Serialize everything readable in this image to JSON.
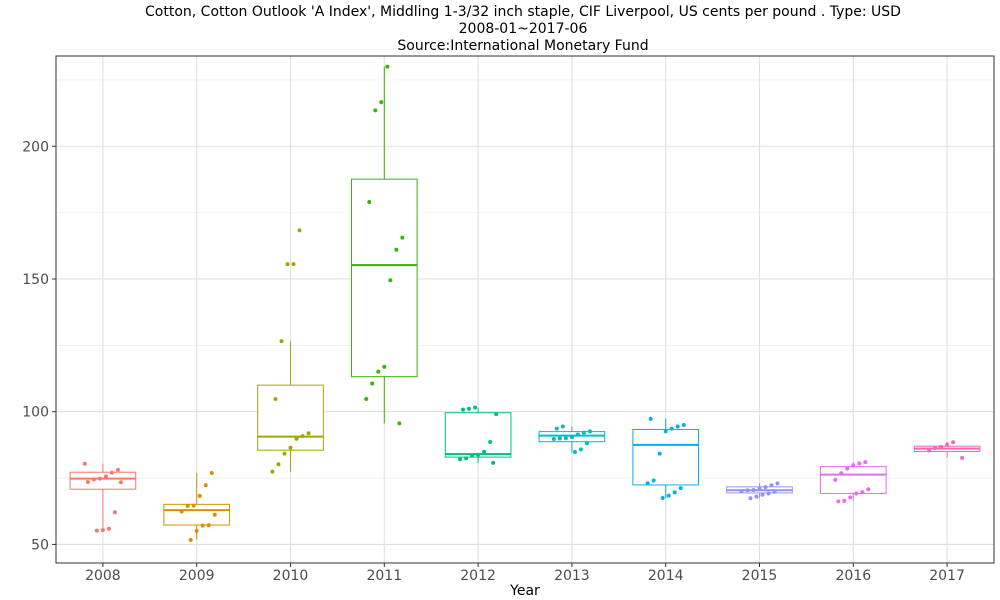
{
  "chart_data": {
    "type": "box",
    "title": "Cotton, Cotton Outlook 'A Index', Middling 1-3/32 inch staple, CIF Liverpool, US cents per pound . Type: USD",
    "subtitle": "2008-01~2017-06",
    "source": "Source:International Monetary Fund",
    "xlabel": "Year",
    "ylabel": "",
    "ylim": [
      43,
      234
    ],
    "yticks": [
      50,
      100,
      150,
      200
    ],
    "grid": true,
    "legend": "none",
    "categories": [
      "2008",
      "2009",
      "2010",
      "2011",
      "2012",
      "2013",
      "2014",
      "2015",
      "2016",
      "2017"
    ],
    "boxes": [
      {
        "year": "2008",
        "color": "#F8766D",
        "whisker_low": 55.2,
        "q1": 70.8,
        "median": 74.8,
        "q3": 77.2,
        "whisker_high": 80.4,
        "points": [
          80.4,
          78.1,
          77.0,
          75.6,
          74.8,
          74.5,
          73.5,
          73.4,
          62.1,
          55.9,
          55.4,
          55.2
        ]
      },
      {
        "year": "2009",
        "color": "#D89000",
        "whisker_low": 51.7,
        "q1": 57.3,
        "median": 62.9,
        "q3": 65.1,
        "whisker_high": 76.9,
        "points": [
          76.9,
          72.3,
          68.3,
          64.6,
          64.5,
          62.4,
          61.2,
          57.2,
          57.1,
          55.1,
          51.7
        ]
      },
      {
        "year": "2010",
        "color": "#A3A500",
        "whisker_low": 77.4,
        "q1": 85.5,
        "median": 90.6,
        "q3": 110.0,
        "whisker_high": 126.6,
        "points": [
          168.3,
          155.6,
          155.6,
          126.6,
          104.8,
          91.9,
          90.8,
          89.8,
          86.4,
          84.2,
          80.2,
          77.4
        ]
      },
      {
        "year": "2011",
        "color": "#39B600",
        "whisker_low": 95.6,
        "q1": 113.2,
        "median": 155.2,
        "q3": 187.6,
        "whisker_high": 230.0,
        "points": [
          230.0,
          216.6,
          213.5,
          179.0,
          165.6,
          161.0,
          149.5,
          116.9,
          115.1,
          110.6,
          104.8,
          95.6
        ]
      },
      {
        "year": "2012",
        "color": "#00BF7D",
        "whisker_low": 80.7,
        "q1": 82.9,
        "median": 84.0,
        "q3": 99.6,
        "whisker_high": 101.6,
        "points": [
          101.6,
          101.1,
          100.8,
          99.1,
          88.6,
          84.9,
          83.8,
          83.5,
          82.4,
          82.1,
          80.7
        ]
      },
      {
        "year": "2013",
        "color": "#00BFC4",
        "whisker_low": 84.8,
        "q1": 88.7,
        "median": 91.0,
        "q3": 92.5,
        "whisker_high": 94.4,
        "points": [
          94.4,
          93.6,
          92.6,
          92.1,
          91.4,
          90.4,
          90.0,
          89.9,
          89.7,
          88.1,
          85.8,
          84.8
        ]
      },
      {
        "year": "2014",
        "color": "#00B0F6",
        "whisker_low": 67.5,
        "q1": 72.4,
        "median": 87.5,
        "q3": 93.3,
        "whisker_high": 97.3,
        "points": [
          97.3,
          95.0,
          94.4,
          93.6,
          92.6,
          84.2,
          74.1,
          73.0,
          71.2,
          69.6,
          68.4,
          67.5
        ]
      },
      {
        "year": "2015",
        "color": "#9590FF",
        "whisker_low": 67.4,
        "q1": 69.4,
        "median": 70.4,
        "q3": 71.7,
        "whisker_high": 73.0,
        "points": [
          73.0,
          72.3,
          71.6,
          71.0,
          70.5,
          70.4,
          70.1,
          69.8,
          69.2,
          68.7,
          68.0,
          67.4
        ]
      },
      {
        "year": "2016",
        "color": "#E76BF3",
        "whisker_low": 66.2,
        "q1": 69.2,
        "median": 76.3,
        "q3": 79.3,
        "whisker_high": 81.0,
        "points": [
          81.0,
          80.5,
          79.8,
          78.6,
          76.8,
          74.3,
          70.8,
          69.7,
          69.2,
          67.7,
          66.4,
          66.2
        ]
      },
      {
        "year": "2017",
        "color": "#FF62BC",
        "whisker_low": 82.6,
        "q1": 85.0,
        "median": 86.1,
        "q3": 87.0,
        "whisker_high": 88.5,
        "points": [
          88.5,
          87.6,
          86.8,
          86.3,
          85.4,
          82.6
        ]
      }
    ]
  }
}
